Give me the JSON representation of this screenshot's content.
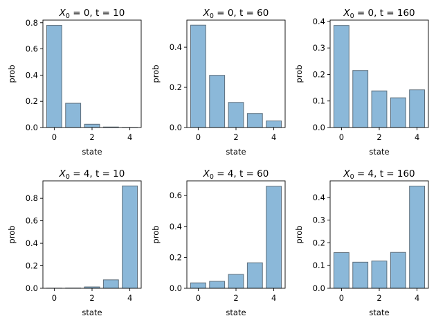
{
  "colors": {
    "bar_fill": "#8bb8d9",
    "bar_edge": "#5e6e7b",
    "axis": "#000000"
  },
  "chart_data": [
    {
      "type": "bar",
      "title": {
        "pre": "X",
        "sub": "0",
        "post": " = 0, t = 10"
      },
      "xlabel": "state",
      "ylabel": "prob",
      "categories": [
        0,
        1,
        2,
        3,
        4
      ],
      "values": [
        0.78,
        0.185,
        0.025,
        0.004,
        0.001
      ],
      "xlim": [
        -0.6,
        4.6
      ],
      "ylim": [
        0,
        0.82
      ],
      "xticks": [
        0,
        2,
        4
      ],
      "xtick_labels": [
        "0",
        "2",
        "4"
      ],
      "yticks": [
        0,
        0.2,
        0.4,
        0.6,
        0.8
      ],
      "ytick_labels": [
        "0.0",
        "0.2",
        "0.4",
        "0.6",
        "0.8"
      ]
    },
    {
      "type": "bar",
      "title": {
        "pre": "X",
        "sub": "0",
        "post": " = 0, t = 60"
      },
      "xlabel": "state",
      "ylabel": "prob",
      "categories": [
        0,
        1,
        2,
        3,
        4
      ],
      "values": [
        0.51,
        0.26,
        0.125,
        0.07,
        0.033
      ],
      "xlim": [
        -0.6,
        4.6
      ],
      "ylim": [
        0,
        0.535
      ],
      "xticks": [
        0,
        2,
        4
      ],
      "xtick_labels": [
        "0",
        "2",
        "4"
      ],
      "yticks": [
        0,
        0.2,
        0.4
      ],
      "ytick_labels": [
        "0.0",
        "0.2",
        "0.4"
      ]
    },
    {
      "type": "bar",
      "title": {
        "pre": "X",
        "sub": "0",
        "post": " = 0, t = 160"
      },
      "xlabel": "state",
      "ylabel": "prob",
      "categories": [
        0,
        1,
        2,
        3,
        4
      ],
      "values": [
        0.385,
        0.215,
        0.138,
        0.112,
        0.142
      ],
      "xlim": [
        -0.6,
        4.6
      ],
      "ylim": [
        0,
        0.405
      ],
      "xticks": [
        0,
        2,
        4
      ],
      "xtick_labels": [
        "0",
        "2",
        "4"
      ],
      "yticks": [
        0,
        0.1,
        0.2,
        0.3,
        0.4
      ],
      "ytick_labels": [
        "0.0",
        "0.1",
        "0.2",
        "0.3",
        "0.4"
      ]
    },
    {
      "type": "bar",
      "title": {
        "pre": "X",
        "sub": "0",
        "post": " = 4, t = 10"
      },
      "xlabel": "state",
      "ylabel": "prob",
      "categories": [
        0,
        1,
        2,
        3,
        4
      ],
      "values": [
        0.001,
        0.002,
        0.012,
        0.075,
        0.91
      ],
      "xlim": [
        -0.6,
        4.6
      ],
      "ylim": [
        0,
        0.955
      ],
      "xticks": [
        0,
        2,
        4
      ],
      "xtick_labels": [
        "0",
        "2",
        "4"
      ],
      "yticks": [
        0,
        0.2,
        0.4,
        0.6,
        0.8
      ],
      "ytick_labels": [
        "0.0",
        "0.2",
        "0.4",
        "0.6",
        "0.8"
      ]
    },
    {
      "type": "bar",
      "title": {
        "pre": "X",
        "sub": "0",
        "post": " = 4, t = 60"
      },
      "xlabel": "state",
      "ylabel": "prob",
      "categories": [
        0,
        1,
        2,
        3,
        4
      ],
      "values": [
        0.035,
        0.045,
        0.09,
        0.165,
        0.66
      ],
      "xlim": [
        -0.6,
        4.6
      ],
      "ylim": [
        0,
        0.695
      ],
      "xticks": [
        0,
        2,
        4
      ],
      "xtick_labels": [
        "0",
        "2",
        "4"
      ],
      "yticks": [
        0,
        0.2,
        0.4,
        0.6
      ],
      "ytick_labels": [
        "0.0",
        "0.2",
        "0.4",
        "0.6"
      ]
    },
    {
      "type": "bar",
      "title": {
        "pre": "X",
        "sub": "0",
        "post": " = 4, t = 160"
      },
      "xlabel": "state",
      "ylabel": "prob",
      "categories": [
        0,
        1,
        2,
        3,
        4
      ],
      "values": [
        0.157,
        0.115,
        0.12,
        0.158,
        0.45
      ],
      "xlim": [
        -0.6,
        4.6
      ],
      "ylim": [
        0,
        0.473
      ],
      "xticks": [
        0,
        2,
        4
      ],
      "xtick_labels": [
        "0",
        "2",
        "4"
      ],
      "yticks": [
        0,
        0.1,
        0.2,
        0.3,
        0.4
      ],
      "ytick_labels": [
        "0.0",
        "0.1",
        "0.2",
        "0.3",
        "0.4"
      ]
    }
  ]
}
